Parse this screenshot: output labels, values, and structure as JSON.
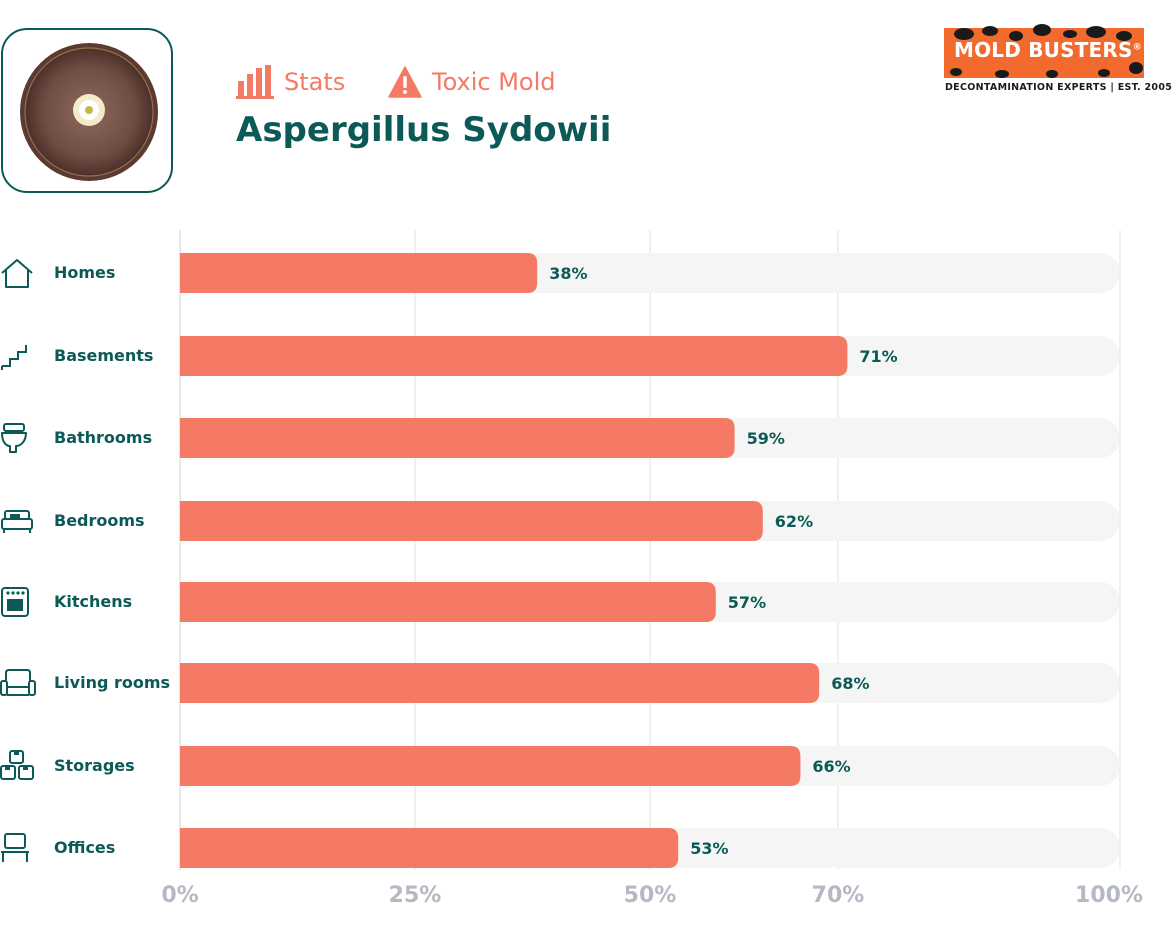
{
  "header": {
    "tag_stats": "Stats",
    "tag_toxic": "Toxic Mold",
    "title": "Aspergillus Sydowii"
  },
  "logo": {
    "name": "MOLD BUSTERS",
    "registered": "®",
    "tagline": "DECONTAMINATION EXPERTS | EST. 2005"
  },
  "colors": {
    "bar": "#f47a66",
    "track": "#f5f5f5",
    "label": "#0b5a57",
    "tick": "#b5b9c4",
    "grid": "#e2e2e2",
    "logo_bg": "#f26a2e"
  },
  "chart_data": {
    "type": "bar",
    "orientation": "horizontal",
    "categories": [
      "Homes",
      "Basements",
      "Bathrooms",
      "Bedrooms",
      "Kitchens",
      "Living rooms",
      "Storages",
      "Offices"
    ],
    "icons": [
      "house-icon",
      "stairs-icon",
      "toilet-icon",
      "bed-icon",
      "oven-icon",
      "armchair-icon",
      "boxes-icon",
      "desk-icon"
    ],
    "values": [
      38,
      71,
      59,
      62,
      57,
      68,
      66,
      53
    ],
    "data_labels": [
      "38%",
      "71%",
      "59%",
      "62%",
      "57%",
      "68%",
      "66%",
      "53%"
    ],
    "xticks": [
      0,
      25,
      50,
      70,
      100
    ],
    "xtick_labels": [
      "0%",
      "25%",
      "50%",
      "70%",
      "100%"
    ],
    "xlim": [
      0,
      100
    ],
    "grid": true,
    "title": "",
    "xlabel": "",
    "ylabel": ""
  }
}
